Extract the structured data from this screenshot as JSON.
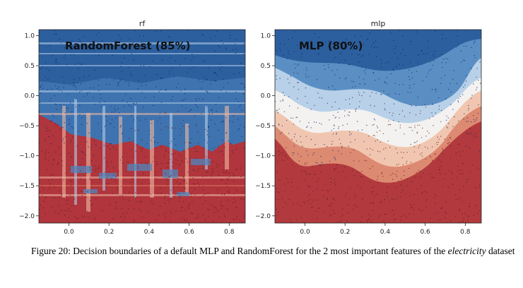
{
  "chart_data": [
    {
      "type": "heatmap",
      "title": "rf",
      "annotation": "RandomForest (85%)",
      "xlabel": "",
      "ylabel": "",
      "xlim": [
        -0.15,
        0.88
      ],
      "ylim": [
        -2.12,
        1.1
      ],
      "xticks": [
        0.0,
        0.2,
        0.4,
        0.6,
        0.8
      ],
      "xtick_labels": [
        "0.0",
        "0.2",
        "0.4",
        "0.6",
        "0.8"
      ],
      "yticks": [
        1.0,
        0.5,
        0.0,
        -0.5,
        -1.0,
        -1.5,
        -2.0
      ],
      "ytick_labels": [
        "1.0",
        "0.5",
        "0.0",
        "−0.5",
        "−1.0",
        "−1.5",
        "−2.0"
      ],
      "colormap": "RdBu",
      "colors": {
        "blue_dark": "#2c5f9e",
        "blue": "#4f86bd",
        "blue_light": "#b5cfe6",
        "white": "#f4f1ee",
        "red_light": "#eebba4",
        "red": "#d87864",
        "red_dark": "#b0353c"
      }
    },
    {
      "type": "heatmap",
      "title": "mlp",
      "annotation": "MLP (80%)",
      "xlabel": "",
      "ylabel": "",
      "xlim": [
        -0.15,
        0.88
      ],
      "ylim": [
        -2.12,
        1.1
      ],
      "xticks": [
        0.0,
        0.2,
        0.4,
        0.6,
        0.8
      ],
      "xtick_labels": [
        "0.0",
        "0.2",
        "0.4",
        "0.6",
        "0.8"
      ],
      "yticks": [
        1.0,
        0.5,
        0.0,
        -0.5,
        -1.0,
        -1.5,
        -2.0
      ],
      "ytick_labels": [
        "1.0",
        "0.5",
        "0.0",
        "−0.5",
        "−1.0",
        "−1.5",
        "−2.0"
      ],
      "colormap": "RdBu",
      "colors": {
        "blue_dark": "#2c5f9e",
        "blue": "#5b8fc4",
        "blue_light": "#b8d1e8",
        "white": "#f3f2f0",
        "red_light": "#f1c6b0",
        "red": "#dd8a72",
        "red_dark": "#b23a3e"
      }
    }
  ],
  "caption": {
    "prefix": "Figure 20: Decision boundaries of a default MLP and RandomForest for the 2 most important features of the ",
    "dataset": "electricity",
    "suffix": " dataset"
  }
}
